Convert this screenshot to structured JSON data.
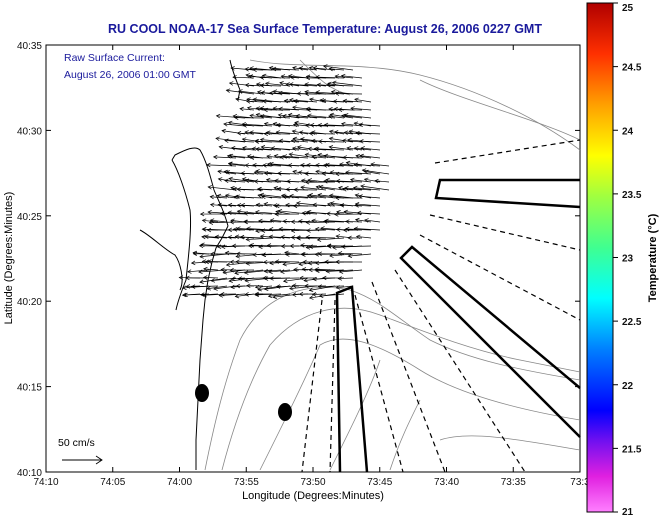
{
  "title": "RU COOL  NOAA-17  Sea Surface Temperature:  August 26, 2006 0227 GMT",
  "legend": {
    "line1": "Raw Surface Current:",
    "line2": "August 26, 2006 01:00 GMT",
    "scale_label": "50 cm/s"
  },
  "axes": {
    "xlabel": "Longitude (Degrees:Minutes)",
    "ylabel": "Latitude (Degrees:Minutes)",
    "xticks": [
      "74:10",
      "74:05",
      "74:00",
      "73:55",
      "73:50",
      "73:45",
      "73:40",
      "73:35",
      "73:3"
    ],
    "yticks": [
      "40:35",
      "40:30",
      "40:25",
      "40:20",
      "40:15",
      "40:10"
    ]
  },
  "colorbar": {
    "label": "Temperature (°C)",
    "ticks": [
      "25",
      "24.5",
      "24",
      "23.5",
      "23",
      "22.5",
      "22",
      "21.5",
      "21"
    ],
    "min": 21,
    "max": 25
  },
  "colors": {
    "title": "#1a1a9c",
    "land": "#ffffff",
    "current_vectors": "#000000"
  }
}
